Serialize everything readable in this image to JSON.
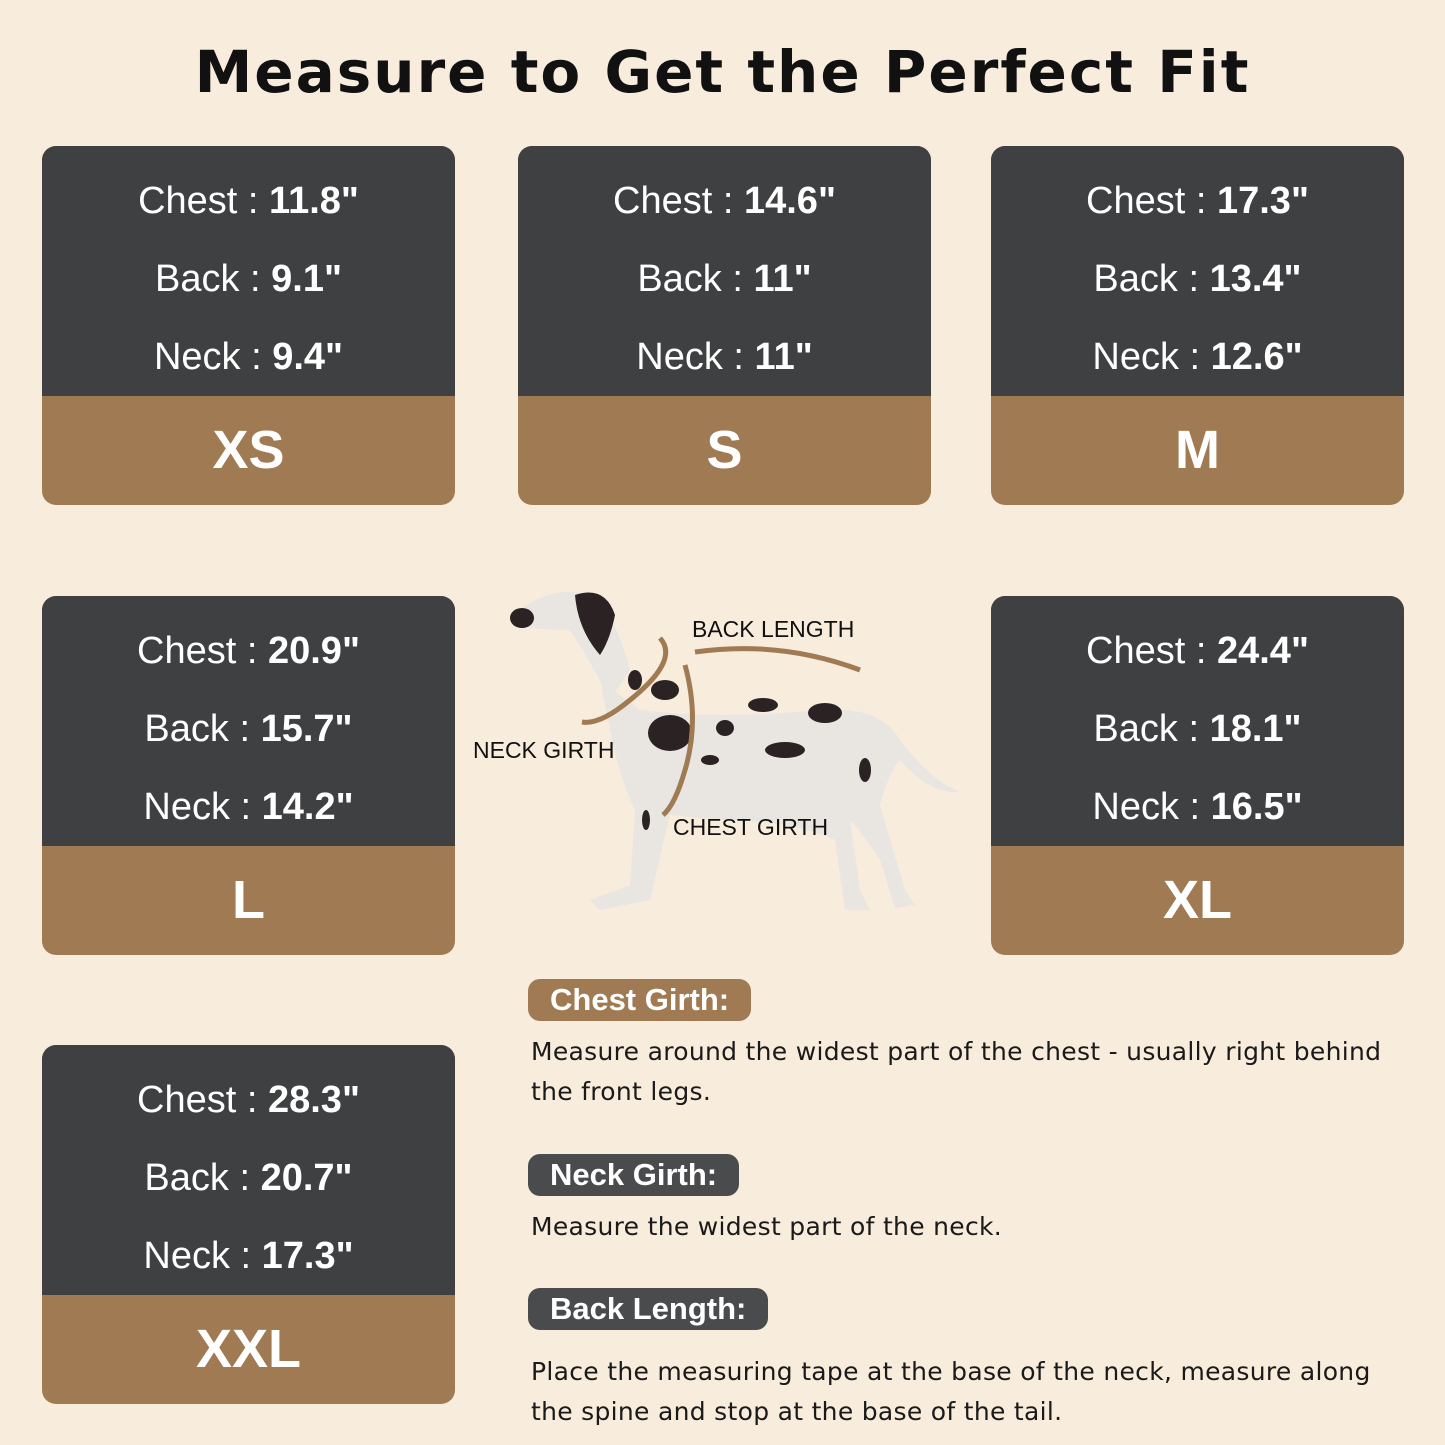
{
  "title": "Measure to Get the Perfect Fit",
  "labels": {
    "chest": "Chest",
    "back": "Back",
    "neck": "Neck",
    "sep": " : "
  },
  "sizes": [
    {
      "size": "XS",
      "chest": "11.8\"",
      "back": "9.1\"",
      "neck": "9.4\""
    },
    {
      "size": "S",
      "chest": "14.6\"",
      "back": "11\"",
      "neck": "11\""
    },
    {
      "size": "M",
      "chest": "17.3\"",
      "back": "13.4\"",
      "neck": "12.6\""
    },
    {
      "size": "L",
      "chest": "20.9\"",
      "back": "15.7\"",
      "neck": "14.2\""
    },
    {
      "size": "XL",
      "chest": "24.4\"",
      "back": "18.1\"",
      "neck": "16.5\""
    },
    {
      "size": "XXL",
      "chest": "28.3\"",
      "back": "20.7\"",
      "neck": "17.3\""
    }
  ],
  "diagram": {
    "back_length": "BACK LENGTH",
    "neck_girth": "NECK GIRTH",
    "chest_girth": "CHEST GIRTH"
  },
  "instructions": [
    {
      "heading": "Chest Girth:",
      "text": "Measure around the widest part of the chest - usually right behind the front legs."
    },
    {
      "heading": "Neck Girth:",
      "text": "Measure the widest part of the neck."
    },
    {
      "heading": "Back Length:",
      "text": "Place the measuring tape at the base of the neck, measure along the spine and stop at the base of the tail."
    }
  ],
  "colors": {
    "background": "#f8ecdc",
    "dark": "#3f4042",
    "brown": "#a07a52"
  }
}
